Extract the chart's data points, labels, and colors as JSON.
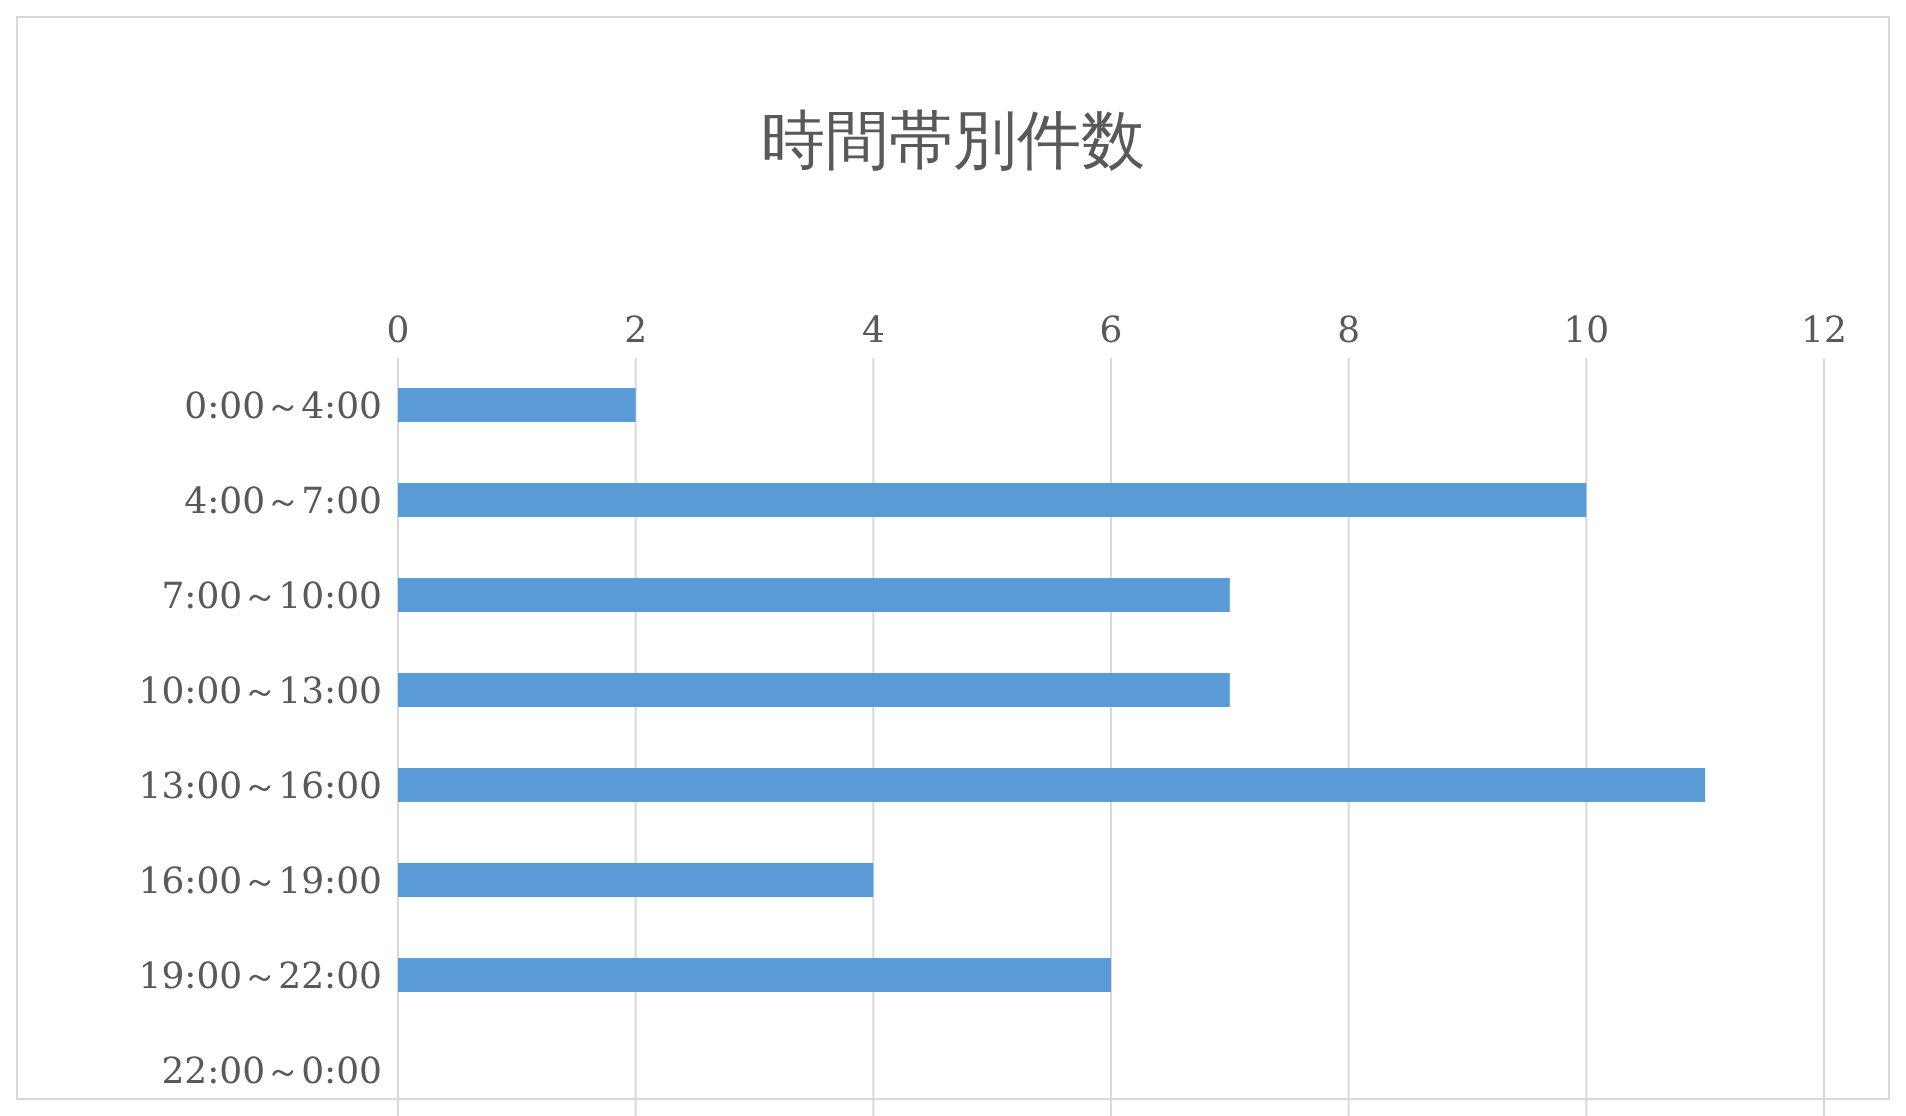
{
  "chart_data": {
    "type": "bar",
    "orientation": "horizontal",
    "title": "時間帯別件数",
    "categories": [
      "0:00～4:00",
      "4:00～7:00",
      "7:00～10:00",
      "10:00～13:00",
      "13:00～16:00",
      "16:00～19:00",
      "19:00～22:00",
      "22:00～0:00"
    ],
    "values": [
      2,
      10,
      7,
      7,
      11,
      4,
      6,
      0
    ],
    "color": "#5b9bd5",
    "xlim": [
      0,
      12
    ],
    "xticks": [
      0,
      2,
      4,
      6,
      8,
      10,
      12
    ],
    "grid": "x"
  }
}
